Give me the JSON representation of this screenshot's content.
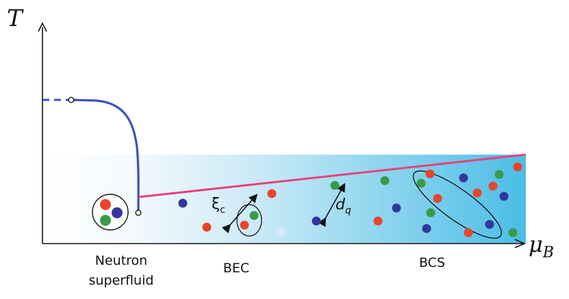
{
  "axes": {
    "y_label": "T",
    "x_label_main": "μ",
    "x_label_sub": "B"
  },
  "regions": {
    "neutron_line1": "Neutron",
    "neutron_line2": "superfluid",
    "bec": "BEC",
    "bcs": "BCS"
  },
  "symbols": {
    "xi_main": "ξ",
    "xi_sub": "c",
    "d_main": "d",
    "d_sub": "q"
  },
  "colors": {
    "red": "#e8452c",
    "green": "#3a9a48",
    "blue": "#3436a0",
    "curve": "#3a52b5",
    "line": "#e8407a",
    "band_light": "#ffffff",
    "band_dark": "#4bbde6"
  }
}
